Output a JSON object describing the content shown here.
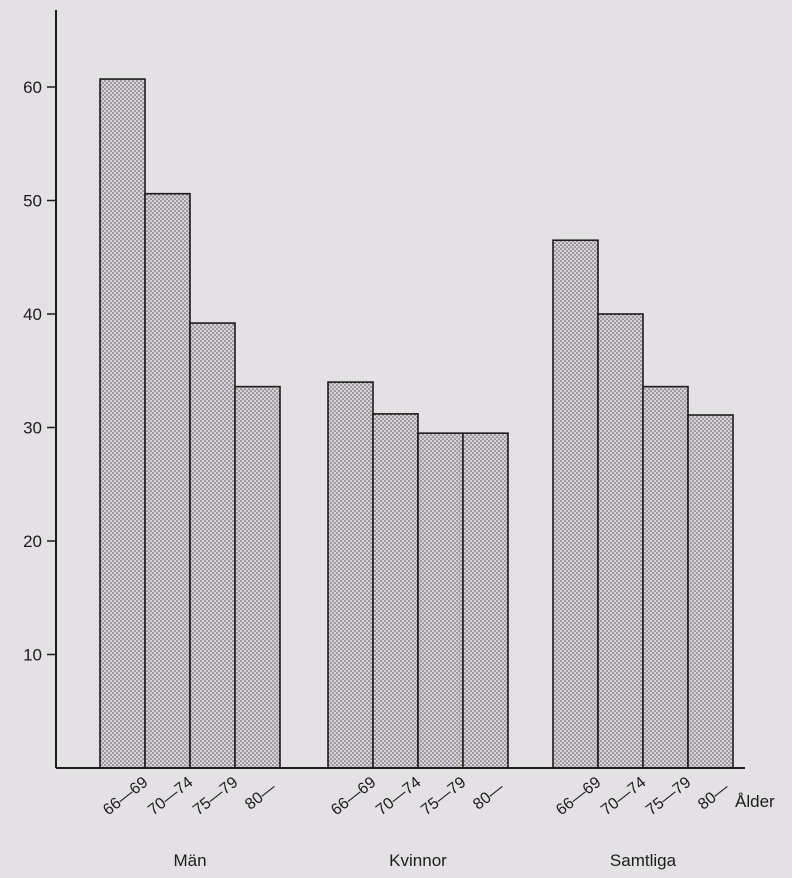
{
  "chart_data": {
    "type": "bar",
    "title": "",
    "xlabel": "Ålder",
    "ylabel": "",
    "ylim": [
      0,
      66
    ],
    "yticks": [
      10,
      20,
      30,
      40,
      50,
      60
    ],
    "grid": false,
    "groups": [
      {
        "name": "Män",
        "categories": [
          "66—69",
          "70—74",
          "75—79",
          "80—"
        ],
        "values": [
          60.7,
          50.6,
          39.2,
          33.6
        ]
      },
      {
        "name": "Kvinnor",
        "categories": [
          "66—69",
          "70—74",
          "75—79",
          "80—"
        ],
        "values": [
          34.0,
          31.2,
          29.5,
          29.5
        ]
      },
      {
        "name": "Samtliga",
        "categories": [
          "66—69",
          "70—74",
          "75—79",
          "80—"
        ],
        "values": [
          46.5,
          40.0,
          33.6,
          31.1
        ]
      }
    ]
  },
  "colors": {
    "background": "#e3e1e4",
    "bar_fill": "#d6d2d6",
    "bar_dots": "#5a565c",
    "axis": "#1c1c1c"
  }
}
